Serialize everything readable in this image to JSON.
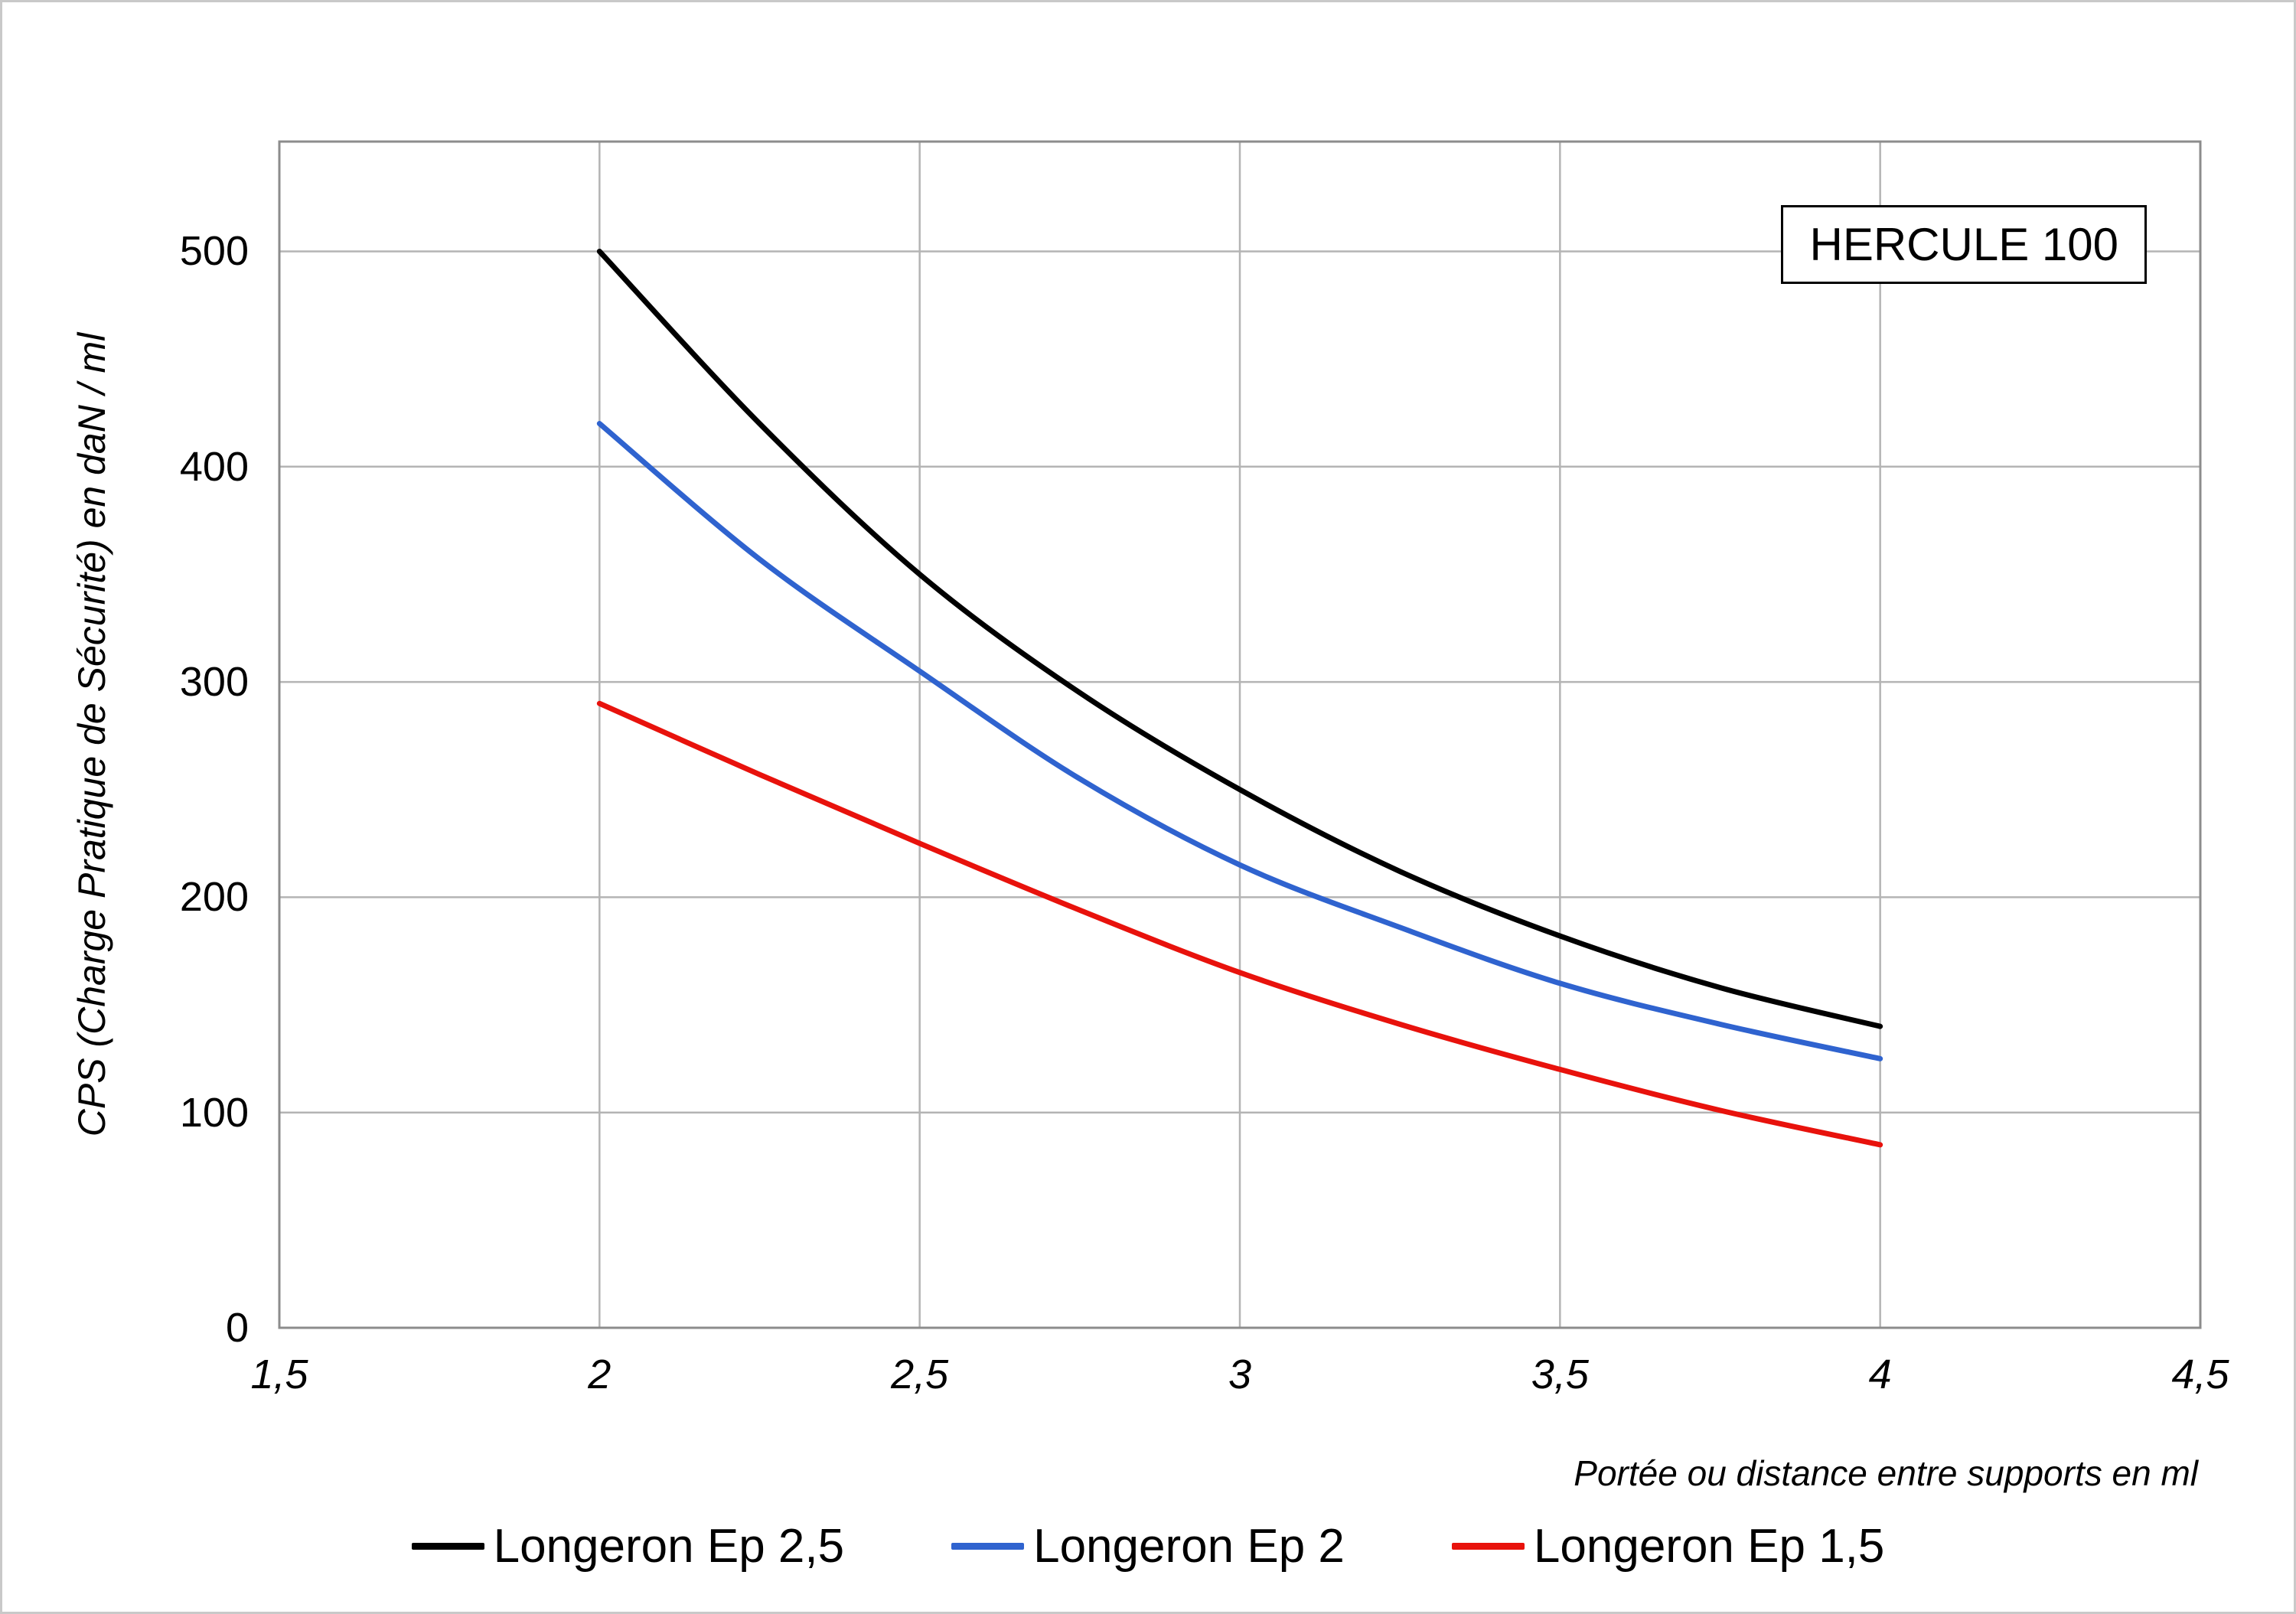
{
  "chart_data": {
    "type": "line",
    "title": "HERCULE 100",
    "xlabel": "Portée ou distance entre supports en ml",
    "ylabel": "CPS (Charge Pratique de Sécurité) en daN / ml",
    "xlim": [
      1.5,
      4.5
    ],
    "ylim": [
      0,
      551
    ],
    "grid": true,
    "legend_position": "bottom",
    "x_tick_labels": [
      "1,5",
      "2",
      "2,5",
      "3",
      "3,5",
      "4",
      "4,5"
    ],
    "x_tick_values": [
      1.5,
      2,
      2.5,
      3,
      3.5,
      4,
      4.5
    ],
    "y_tick_values": [
      0,
      100,
      200,
      300,
      400,
      500
    ],
    "x": [
      2,
      2.25,
      2.5,
      2.75,
      3,
      3.25,
      3.5,
      3.75,
      4
    ],
    "series": [
      {
        "name": "Longeron Ep 2,5",
        "color": "#000000",
        "values": [
          500,
          420,
          350,
          295,
          250,
          212,
          182,
          158,
          140
        ]
      },
      {
        "name": "Longeron Ep 2",
        "color": "#2f63cf",
        "values": [
          420,
          357,
          305,
          255,
          215,
          186,
          160,
          141,
          125
        ]
      },
      {
        "name": "Longeron Ep 1,5",
        "color": "#e8120c",
        "values": [
          290,
          257,
          225,
          194,
          165,
          141,
          120,
          101,
          85
        ]
      }
    ],
    "colors": {
      "grid": "#b4b4b4",
      "plot_frame": "#8c8c8c"
    }
  }
}
